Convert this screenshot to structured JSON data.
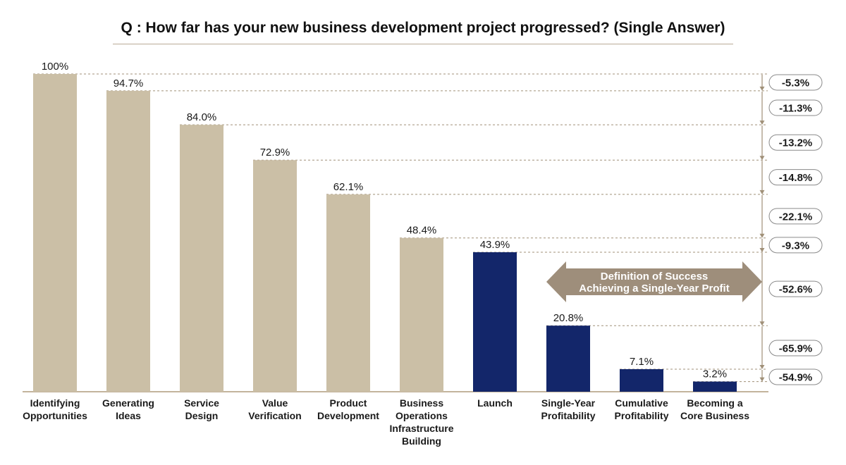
{
  "chart_data": {
    "type": "bar",
    "title": "Q : How far has your new business development project progressed? (Single Answer)",
    "categories": [
      "Identifying\nOpportunities",
      "Generating\nIdeas",
      "Service\nDesign",
      "Value\nVerification",
      "Product\nDevelopment",
      "Business\nOperations\nInfrastructure\nBuilding",
      "Launch",
      "Single-Year\nProfitability",
      "Cumulative\nProfitability",
      "Becoming a\nCore Business"
    ],
    "values": [
      100,
      94.7,
      84.0,
      72.9,
      62.1,
      48.4,
      43.9,
      20.8,
      7.1,
      3.2
    ],
    "value_labels": [
      "100%",
      "94.7%",
      "84.0%",
      "72.9%",
      "62.1%",
      "48.4%",
      "43.9%",
      "20.8%",
      "7.1%",
      "3.2%"
    ],
    "bar_colors": [
      "#cbbfa6",
      "#cbbfa6",
      "#cbbfa6",
      "#cbbfa6",
      "#cbbfa6",
      "#cbbfa6",
      "#13266a",
      "#13266a",
      "#13266a",
      "#13266a"
    ],
    "deltas": [
      "-5.3%",
      "-11.3%",
      "-13.2%",
      "-14.8%",
      "-22.1%",
      "-9.3%",
      "-52.6%",
      "-65.9%",
      "-54.9%"
    ],
    "annotation": {
      "line1": "Definition of Success",
      "line2": "Achieving a Single-Year Profit",
      "color": "#9e8e7b"
    },
    "ylim": [
      0,
      100
    ],
    "grid": false,
    "legend": "none",
    "colors": {
      "tan": "#cbbfa6",
      "navy": "#13266a",
      "guide": "#a09078",
      "baseline": "#c3b49c"
    }
  }
}
